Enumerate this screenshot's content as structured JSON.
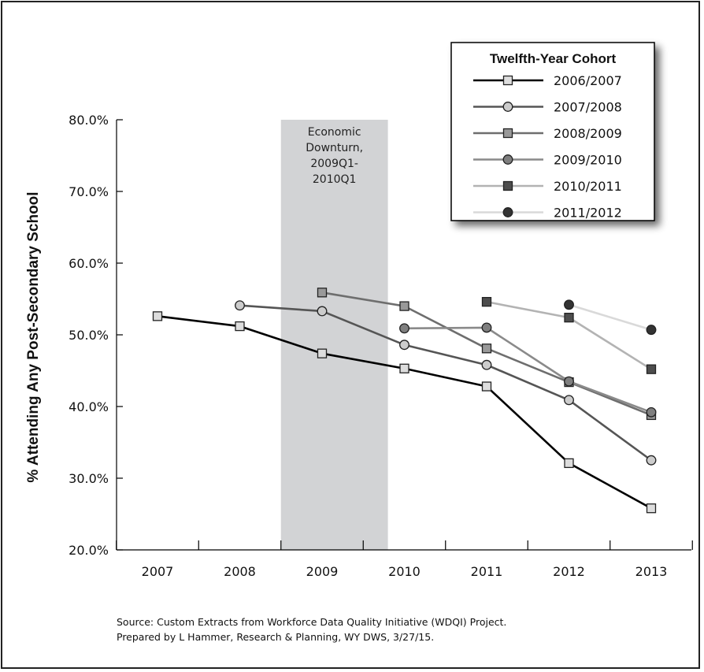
{
  "chart_data": {
    "type": "line",
    "ylabel": "% Attending Any Post-Secondary School",
    "xlabel": "",
    "categories": [
      "2007",
      "2008",
      "2009",
      "2010",
      "2011",
      "2012",
      "2013"
    ],
    "ylim": [
      20,
      80
    ],
    "ytick_labels": [
      "20.0%",
      "30.0%",
      "40.0%",
      "50.0%",
      "60.0%",
      "70.0%",
      "80.0%"
    ],
    "legend": {
      "title": "Twelfth-Year Cohort",
      "position": "top-right"
    },
    "annotation": {
      "lines": [
        "Economic",
        "Downturn,",
        "2009Q1-",
        "2010Q1"
      ],
      "x_start": 2008.5,
      "x_end": 2009.8
    },
    "series": [
      {
        "name": "2006/2007",
        "marker": "square",
        "line_color": "#000000",
        "fill": "#dddddd",
        "x": [
          "2007",
          "2008",
          "2009",
          "2010",
          "2011",
          "2012",
          "2013"
        ],
        "values": [
          52.6,
          51.2,
          47.4,
          45.3,
          42.8,
          32.1,
          25.8
        ]
      },
      {
        "name": "2007/2008",
        "marker": "circle",
        "line_color": "#555555",
        "fill": "#cccccc",
        "x": [
          "2008",
          "2009",
          "2010",
          "2011",
          "2012",
          "2013"
        ],
        "values": [
          54.1,
          53.3,
          48.6,
          45.8,
          40.9,
          32.5
        ]
      },
      {
        "name": "2008/2009",
        "marker": "square",
        "line_color": "#6e6e6e",
        "fill": "#999999",
        "x": [
          "2009",
          "2010",
          "2011",
          "2012",
          "2013"
        ],
        "values": [
          55.9,
          54.0,
          48.1,
          43.4,
          38.8
        ]
      },
      {
        "name": "2009/2010",
        "marker": "circle",
        "line_color": "#8a8a8a",
        "fill": "#7f7f7f",
        "x": [
          "2010",
          "2011",
          "2012",
          "2013"
        ],
        "values": [
          50.9,
          51.0,
          43.5,
          39.2
        ]
      },
      {
        "name": "2010/2011",
        "marker": "square",
        "line_color": "#b3b3b3",
        "fill": "#4d4d4d",
        "x": [
          "2011",
          "2012",
          "2013"
        ],
        "values": [
          54.6,
          52.4,
          45.2
        ]
      },
      {
        "name": "2011/2012",
        "marker": "circle",
        "line_color": "#d9d9d9",
        "fill": "#333333",
        "x": [
          "2012",
          "2013"
        ],
        "values": [
          54.2,
          50.7
        ]
      }
    ]
  },
  "source": {
    "line1": "Source: Custom Extracts from Workforce Data Quality Initiative (WDQI) Project.",
    "line2": "Prepared by L Hammer, Research & Planning, WY DWS, 3/27/15."
  }
}
